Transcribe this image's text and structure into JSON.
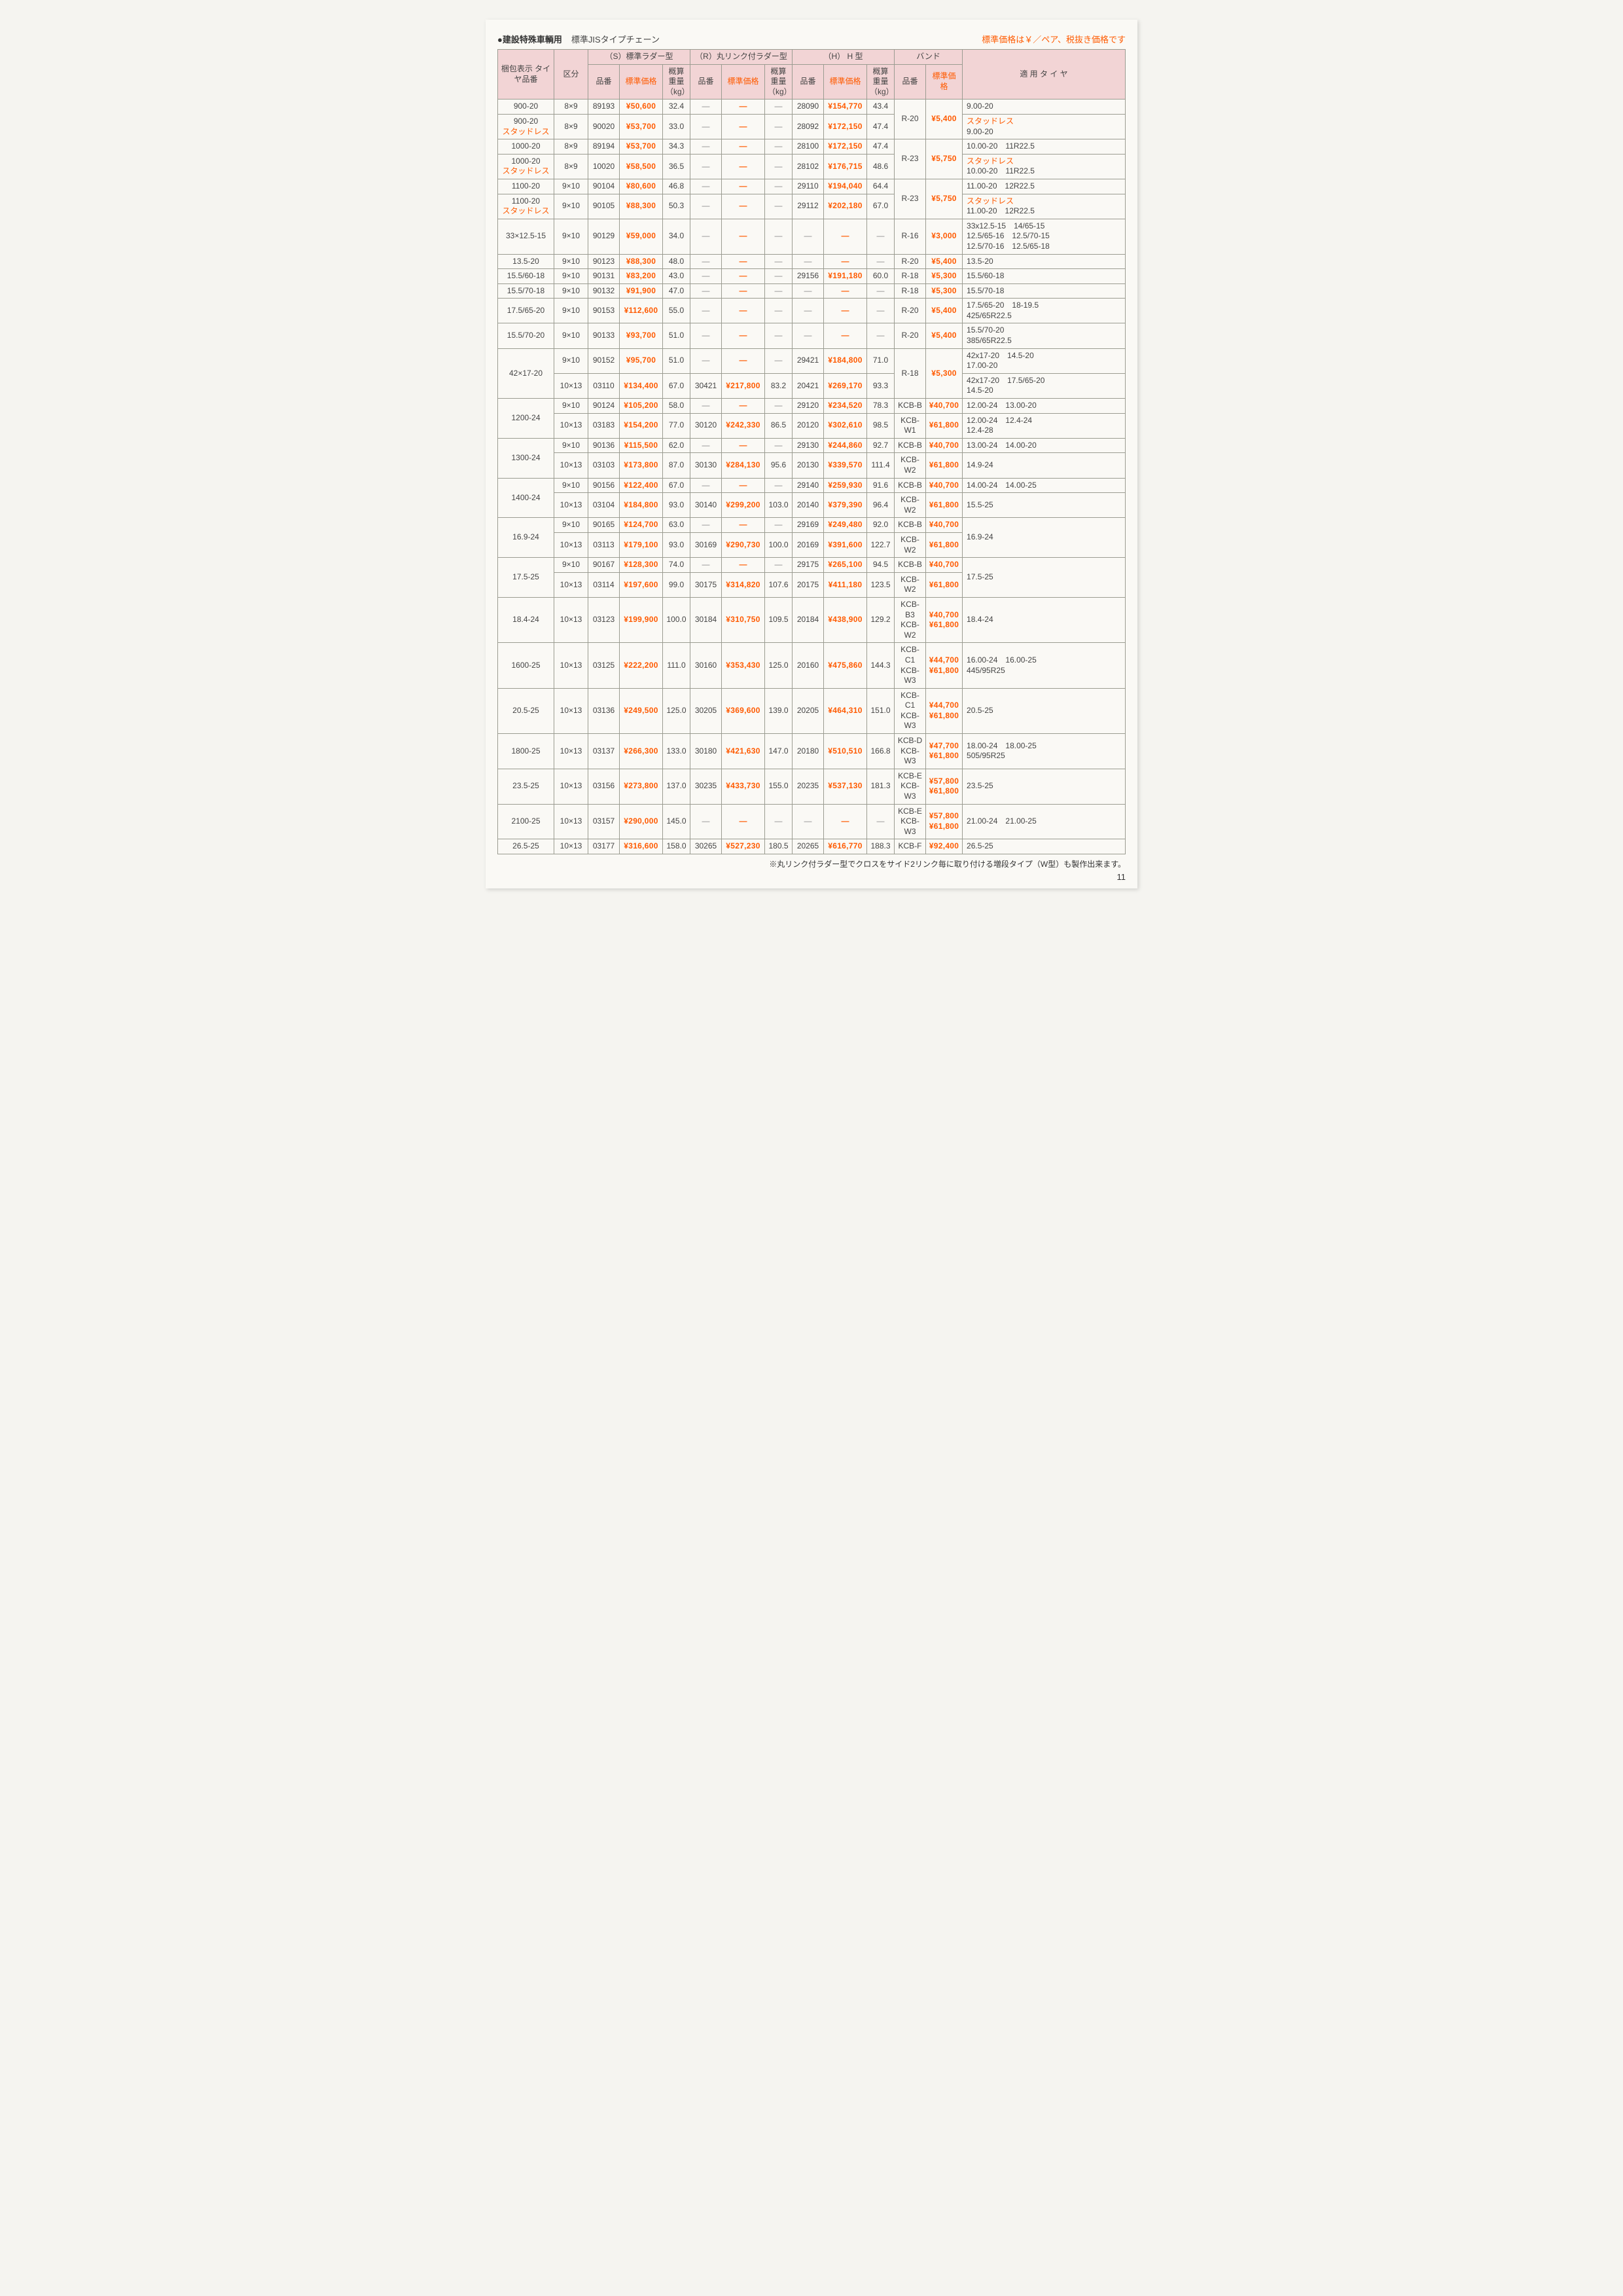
{
  "colors": {
    "price": "#ff5a00",
    "header_pink": "#f2d4d5",
    "border": "#9b9c91",
    "text": "#444444",
    "bg": "#faf9f5"
  },
  "typography": {
    "body_fontsize": 12,
    "title_fontsize": 15
  },
  "header": {
    "bullet_title": "●建設特殊車輌用",
    "sub_title": "標準JISタイプチェーン",
    "right_note": "標準価格は￥／ペア、税抜き価格です"
  },
  "columns": {
    "pkg": "梱包表示\nタイヤ品番",
    "kubun": "区分",
    "s_group": "（S）標準ラダー型",
    "r_group": "（R）丸リンク付ラダー型",
    "h_group": "（H） H 型",
    "band_group": "バンド",
    "hinban": "品番",
    "price": "標準価格",
    "weight": "概算\n重量\n（kg）",
    "apply": "適 用 タ イ ヤ"
  },
  "rows": [
    {
      "pkg": "900-20",
      "kubun": "8×9",
      "s": {
        "no": "89193",
        "price": "¥50,600",
        "wt": "32.4"
      },
      "r": {
        "no": "—",
        "price": "—",
        "wt": "—"
      },
      "h": {
        "no": "28090",
        "price": "¥154,770",
        "wt": "43.4"
      },
      "band": {
        "no": "R-20",
        "price": "¥5,400",
        "rowspan": 2
      },
      "apply": "9.00-20",
      "apply_red": ""
    },
    {
      "pkg": "900-20",
      "pkg_red": "スタッドレス",
      "kubun": "8×9",
      "s": {
        "no": "90020",
        "price": "¥53,700",
        "wt": "33.0"
      },
      "r": {
        "no": "—",
        "price": "—",
        "wt": "—"
      },
      "h": {
        "no": "28092",
        "price": "¥172,150",
        "wt": "47.4"
      },
      "apply": "9.00-20",
      "apply_red": "スタッドレス"
    },
    {
      "pkg": "1000-20",
      "kubun": "8×9",
      "s": {
        "no": "89194",
        "price": "¥53,700",
        "wt": "34.3"
      },
      "r": {
        "no": "—",
        "price": "—",
        "wt": "—"
      },
      "h": {
        "no": "28100",
        "price": "¥172,150",
        "wt": "47.4"
      },
      "band": {
        "no": "R-23",
        "price": "¥5,750",
        "rowspan": 2
      },
      "apply": "10.00-20　11R22.5",
      "apply_red": ""
    },
    {
      "pkg": "1000-20",
      "pkg_red": "スタッドレス",
      "kubun": "8×9",
      "s": {
        "no": "10020",
        "price": "¥58,500",
        "wt": "36.5"
      },
      "r": {
        "no": "—",
        "price": "—",
        "wt": "—"
      },
      "h": {
        "no": "28102",
        "price": "¥176,715",
        "wt": "48.6"
      },
      "apply": "10.00-20　11R22.5",
      "apply_red": "スタッドレス"
    },
    {
      "pkg": "1100-20",
      "kubun": "9×10",
      "s": {
        "no": "90104",
        "price": "¥80,600",
        "wt": "46.8"
      },
      "r": {
        "no": "—",
        "price": "—",
        "wt": "—"
      },
      "h": {
        "no": "29110",
        "price": "¥194,040",
        "wt": "64.4"
      },
      "band": {
        "no": "R-23",
        "price": "¥5,750",
        "rowspan": 2
      },
      "apply": "11.00-20　12R22.5",
      "apply_red": ""
    },
    {
      "pkg": "1100-20",
      "pkg_red": "スタッドレス",
      "kubun": "9×10",
      "s": {
        "no": "90105",
        "price": "¥88,300",
        "wt": "50.3"
      },
      "r": {
        "no": "—",
        "price": "—",
        "wt": "—"
      },
      "h": {
        "no": "29112",
        "price": "¥202,180",
        "wt": "67.0"
      },
      "apply": "11.00-20　12R22.5",
      "apply_red": "スタッドレス"
    },
    {
      "pkg": "33×12.5-15",
      "kubun": "9×10",
      "s": {
        "no": "90129",
        "price": "¥59,000",
        "wt": "34.0"
      },
      "r": {
        "no": "—",
        "price": "—",
        "wt": "—"
      },
      "h": {
        "no": "—",
        "price": "—",
        "wt": "—"
      },
      "band": {
        "no": "R-16",
        "price": "¥3,000"
      },
      "apply": "33x12.5-15　14/65-15\n12.5/65-16　12.5/70-15\n12.5/70-16　12.5/65-18",
      "apply_red": ""
    },
    {
      "pkg": "13.5-20",
      "kubun": "9×10",
      "s": {
        "no": "90123",
        "price": "¥88,300",
        "wt": "48.0"
      },
      "r": {
        "no": "—",
        "price": "—",
        "wt": "—"
      },
      "h": {
        "no": "—",
        "price": "—",
        "wt": "—"
      },
      "band": {
        "no": "R-20",
        "price": "¥5,400"
      },
      "apply": "13.5-20",
      "apply_red": ""
    },
    {
      "pkg": "15.5/60-18",
      "kubun": "9×10",
      "s": {
        "no": "90131",
        "price": "¥83,200",
        "wt": "43.0"
      },
      "r": {
        "no": "—",
        "price": "—",
        "wt": "—"
      },
      "h": {
        "no": "29156",
        "price": "¥191,180",
        "wt": "60.0"
      },
      "band": {
        "no": "R-18",
        "price": "¥5,300"
      },
      "apply": "15.5/60-18",
      "apply_red": ""
    },
    {
      "pkg": "15.5/70-18",
      "kubun": "9×10",
      "s": {
        "no": "90132",
        "price": "¥91,900",
        "wt": "47.0"
      },
      "r": {
        "no": "—",
        "price": "—",
        "wt": "—"
      },
      "h": {
        "no": "—",
        "price": "—",
        "wt": "—"
      },
      "band": {
        "no": "R-18",
        "price": "¥5,300"
      },
      "apply": "15.5/70-18",
      "apply_red": ""
    },
    {
      "pkg": "17.5/65-20",
      "kubun": "9×10",
      "s": {
        "no": "90153",
        "price": "¥112,600",
        "wt": "55.0"
      },
      "r": {
        "no": "—",
        "price": "—",
        "wt": "—"
      },
      "h": {
        "no": "—",
        "price": "—",
        "wt": "—"
      },
      "band": {
        "no": "R-20",
        "price": "¥5,400"
      },
      "apply": "17.5/65-20　18-19.5\n425/65R22.5",
      "apply_red": ""
    },
    {
      "pkg": "15.5/70-20",
      "kubun": "9×10",
      "s": {
        "no": "90133",
        "price": "¥93,700",
        "wt": "51.0"
      },
      "r": {
        "no": "—",
        "price": "—",
        "wt": "—"
      },
      "h": {
        "no": "—",
        "price": "—",
        "wt": "—"
      },
      "band": {
        "no": "R-20",
        "price": "¥5,400"
      },
      "apply": "15.5/70-20\n385/65R22.5",
      "apply_red": ""
    },
    {
      "pkg": "42×17-20",
      "pkg_rowspan": 2,
      "kubun": "9×10",
      "s": {
        "no": "90152",
        "price": "¥95,700",
        "wt": "51.0"
      },
      "r": {
        "no": "—",
        "price": "—",
        "wt": "—"
      },
      "h": {
        "no": "29421",
        "price": "¥184,800",
        "wt": "71.0"
      },
      "band": {
        "no": "R-18",
        "price": "¥5,300",
        "rowspan": 2
      },
      "apply": "42x17-20　14.5-20\n17.00-20",
      "apply_red": ""
    },
    {
      "kubun": "10×13",
      "s": {
        "no": "03110",
        "price": "¥134,400",
        "wt": "67.0"
      },
      "r": {
        "no": "30421",
        "price": "¥217,800",
        "wt": "83.2"
      },
      "h": {
        "no": "20421",
        "price": "¥269,170",
        "wt": "93.3"
      },
      "apply": "42x17-20　17.5/65-20\n14.5-20",
      "apply_red": ""
    },
    {
      "pkg": "1200-24",
      "pkg_rowspan": 2,
      "kubun": "9×10",
      "s": {
        "no": "90124",
        "price": "¥105,200",
        "wt": "58.0"
      },
      "r": {
        "no": "—",
        "price": "—",
        "wt": "—"
      },
      "h": {
        "no": "29120",
        "price": "¥234,520",
        "wt": "78.3"
      },
      "band": {
        "no": "KCB-B",
        "price": "¥40,700"
      },
      "apply": "12.00-24　13.00-20",
      "apply_red": ""
    },
    {
      "kubun": "10×13",
      "s": {
        "no": "03183",
        "price": "¥154,200",
        "wt": "77.0"
      },
      "r": {
        "no": "30120",
        "price": "¥242,330",
        "wt": "86.5"
      },
      "h": {
        "no": "20120",
        "price": "¥302,610",
        "wt": "98.5"
      },
      "band": {
        "no": "KCB-W1",
        "price": "¥61,800"
      },
      "apply": "12.00-24　12.4-24\n12.4-28",
      "apply_red": ""
    },
    {
      "pkg": "1300-24",
      "pkg_rowspan": 2,
      "kubun": "9×10",
      "s": {
        "no": "90136",
        "price": "¥115,500",
        "wt": "62.0"
      },
      "r": {
        "no": "—",
        "price": "—",
        "wt": "—"
      },
      "h": {
        "no": "29130",
        "price": "¥244,860",
        "wt": "92.7"
      },
      "band": {
        "no": "KCB-B",
        "price": "¥40,700"
      },
      "apply": "13.00-24　14.00-20",
      "apply_red": ""
    },
    {
      "kubun": "10×13",
      "s": {
        "no": "03103",
        "price": "¥173,800",
        "wt": "87.0"
      },
      "r": {
        "no": "30130",
        "price": "¥284,130",
        "wt": "95.6"
      },
      "h": {
        "no": "20130",
        "price": "¥339,570",
        "wt": "111.4"
      },
      "band": {
        "no": "KCB-W2",
        "price": "¥61,800"
      },
      "apply": "14.9-24",
      "apply_red": ""
    },
    {
      "pkg": "1400-24",
      "pkg_rowspan": 2,
      "kubun": "9×10",
      "s": {
        "no": "90156",
        "price": "¥122,400",
        "wt": "67.0"
      },
      "r": {
        "no": "—",
        "price": "—",
        "wt": "—"
      },
      "h": {
        "no": "29140",
        "price": "¥259,930",
        "wt": "91.6"
      },
      "band": {
        "no": "KCB-B",
        "price": "¥40,700"
      },
      "apply": "14.00-24　14.00-25",
      "apply_red": ""
    },
    {
      "kubun": "10×13",
      "s": {
        "no": "03104",
        "price": "¥184,800",
        "wt": "93.0"
      },
      "r": {
        "no": "30140",
        "price": "¥299,200",
        "wt": "103.0"
      },
      "h": {
        "no": "20140",
        "price": "¥379,390",
        "wt": "96.4"
      },
      "band": {
        "no": "KCB-W2",
        "price": "¥61,800"
      },
      "apply": "15.5-25",
      "apply_red": ""
    },
    {
      "pkg": "16.9-24",
      "pkg_rowspan": 2,
      "kubun": "9×10",
      "s": {
        "no": "90165",
        "price": "¥124,700",
        "wt": "63.0"
      },
      "r": {
        "no": "—",
        "price": "—",
        "wt": "—"
      },
      "h": {
        "no": "29169",
        "price": "¥249,480",
        "wt": "92.0"
      },
      "band": {
        "no": "KCB-B",
        "price": "¥40,700"
      },
      "apply": "16.9-24",
      "apply_red": "",
      "apply_rowspan": 2
    },
    {
      "kubun": "10×13",
      "s": {
        "no": "03113",
        "price": "¥179,100",
        "wt": "93.0"
      },
      "r": {
        "no": "30169",
        "price": "¥290,730",
        "wt": "100.0"
      },
      "h": {
        "no": "20169",
        "price": "¥391,600",
        "wt": "122.7"
      },
      "band": {
        "no": "KCB-W2",
        "price": "¥61,800"
      }
    },
    {
      "pkg": "17.5-25",
      "pkg_rowspan": 2,
      "kubun": "9×10",
      "s": {
        "no": "90167",
        "price": "¥128,300",
        "wt": "74.0"
      },
      "r": {
        "no": "—",
        "price": "—",
        "wt": "—"
      },
      "h": {
        "no": "29175",
        "price": "¥265,100",
        "wt": "94.5"
      },
      "band": {
        "no": "KCB-B",
        "price": "¥40,700"
      },
      "apply": "17.5-25",
      "apply_red": "",
      "apply_rowspan": 2
    },
    {
      "kubun": "10×13",
      "s": {
        "no": "03114",
        "price": "¥197,600",
        "wt": "99.0"
      },
      "r": {
        "no": "30175",
        "price": "¥314,820",
        "wt": "107.6"
      },
      "h": {
        "no": "20175",
        "price": "¥411,180",
        "wt": "123.5"
      },
      "band": {
        "no": "KCB-W2",
        "price": "¥61,800"
      }
    },
    {
      "pkg": "18.4-24",
      "kubun": "10×13",
      "s": {
        "no": "03123",
        "price": "¥199,900",
        "wt": "100.0"
      },
      "r": {
        "no": "30184",
        "price": "¥310,750",
        "wt": "109.5"
      },
      "h": {
        "no": "20184",
        "price": "¥438,900",
        "wt": "129.2"
      },
      "band": {
        "no": "KCB-B3\nKCB-W2",
        "price": "¥40,700\n¥61,800"
      },
      "apply": "18.4-24",
      "apply_red": ""
    },
    {
      "pkg": "1600-25",
      "kubun": "10×13",
      "s": {
        "no": "03125",
        "price": "¥222,200",
        "wt": "111.0"
      },
      "r": {
        "no": "30160",
        "price": "¥353,430",
        "wt": "125.0"
      },
      "h": {
        "no": "20160",
        "price": "¥475,860",
        "wt": "144.3"
      },
      "band": {
        "no": "KCB-C1\nKCB-W3",
        "price": "¥44,700\n¥61,800"
      },
      "apply": "16.00-24　16.00-25\n445/95R25",
      "apply_red": ""
    },
    {
      "pkg": "20.5-25",
      "kubun": "10×13",
      "s": {
        "no": "03136",
        "price": "¥249,500",
        "wt": "125.0"
      },
      "r": {
        "no": "30205",
        "price": "¥369,600",
        "wt": "139.0"
      },
      "h": {
        "no": "20205",
        "price": "¥464,310",
        "wt": "151.0"
      },
      "band": {
        "no": "KCB-C1\nKCB-W3",
        "price": "¥44,700\n¥61,800"
      },
      "apply": "20.5-25",
      "apply_red": ""
    },
    {
      "pkg": "1800-25",
      "kubun": "10×13",
      "s": {
        "no": "03137",
        "price": "¥266,300",
        "wt": "133.0"
      },
      "r": {
        "no": "30180",
        "price": "¥421,630",
        "wt": "147.0"
      },
      "h": {
        "no": "20180",
        "price": "¥510,510",
        "wt": "166.8"
      },
      "band": {
        "no": "KCB-D\nKCB-W3",
        "price": "¥47,700\n¥61,800"
      },
      "apply": "18.00-24　18.00-25\n505/95R25",
      "apply_red": ""
    },
    {
      "pkg": "23.5-25",
      "kubun": "10×13",
      "s": {
        "no": "03156",
        "price": "¥273,800",
        "wt": "137.0"
      },
      "r": {
        "no": "30235",
        "price": "¥433,730",
        "wt": "155.0"
      },
      "h": {
        "no": "20235",
        "price": "¥537,130",
        "wt": "181.3"
      },
      "band": {
        "no": "KCB-E\nKCB-W3",
        "price": "¥57,800\n¥61,800"
      },
      "apply": "23.5-25",
      "apply_red": ""
    },
    {
      "pkg": "2100-25",
      "kubun": "10×13",
      "s": {
        "no": "03157",
        "price": "¥290,000",
        "wt": "145.0"
      },
      "r": {
        "no": "—",
        "price": "—",
        "wt": "—"
      },
      "h": {
        "no": "—",
        "price": "—",
        "wt": "—"
      },
      "band": {
        "no": "KCB-E\nKCB-W3",
        "price": "¥57,800\n¥61,800"
      },
      "apply": "21.00-24　21.00-25",
      "apply_red": ""
    },
    {
      "pkg": "26.5-25",
      "kubun": "10×13",
      "s": {
        "no": "03177",
        "price": "¥316,600",
        "wt": "158.0"
      },
      "r": {
        "no": "30265",
        "price": "¥527,230",
        "wt": "180.5"
      },
      "h": {
        "no": "20265",
        "price": "¥616,770",
        "wt": "188.3"
      },
      "band": {
        "no": "KCB-F",
        "price": "¥92,400"
      },
      "apply": "26.5-25",
      "apply_red": ""
    }
  ],
  "footnote": "※丸リンク付ラダー型でクロスをサイド2リンク毎に取り付ける増段タイプ（W型）も製作出来ます。",
  "page_number": "11"
}
